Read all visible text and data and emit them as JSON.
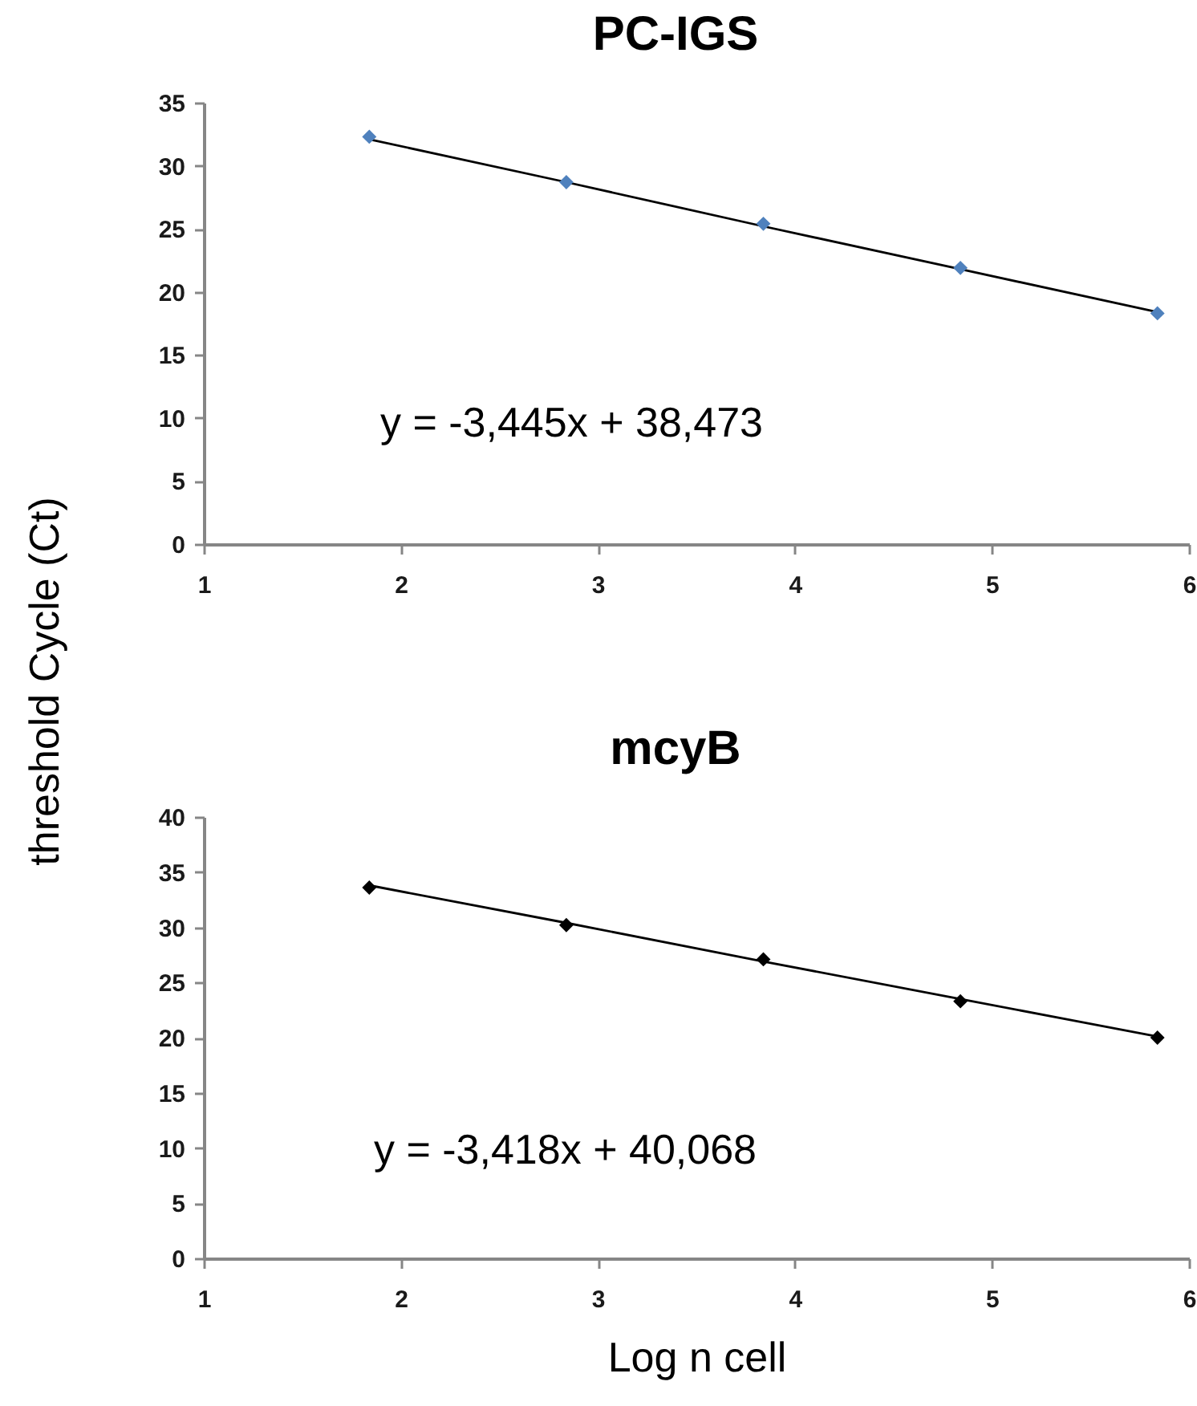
{
  "chart_data": [
    {
      "type": "scatter",
      "title": "PC-IGS",
      "ylabel": "threshold Cycle (Ct)",
      "x": [
        1.84,
        2.84,
        3.84,
        4.84,
        5.84
      ],
      "series": [
        {
          "color": "#4f81bd",
          "marker": "diamond",
          "values": [
            32.3,
            28.7,
            25.4,
            21.9,
            18.3
          ]
        },
        {
          "type": "line",
          "color": "#000000",
          "marker": "none",
          "line_style": "solid",
          "values": [
            32.1,
            28.7,
            25.2,
            21.8,
            18.4
          ]
        }
      ],
      "xlim": [
        1,
        6
      ],
      "xticks": [
        1,
        2,
        3,
        4,
        5,
        6
      ],
      "ylim": [
        0,
        35
      ],
      "yticks": [
        0,
        5,
        10,
        15,
        20,
        25,
        30,
        35
      ],
      "annotations": [
        "y = -3,445x + 38,473"
      ]
    },
    {
      "type": "scatter",
      "title": "mcyB",
      "xlabel": "Log n cell",
      "x": [
        1.84,
        2.84,
        3.84,
        4.84,
        5.84
      ],
      "series": [
        {
          "color": "#000000",
          "marker": "diamond",
          "values": [
            33.6,
            30.2,
            27.1,
            23.3,
            20.0
          ]
        },
        {
          "type": "line",
          "color": "#000000",
          "marker": "none",
          "line_style": "solid",
          "values": [
            33.8,
            30.4,
            26.9,
            23.5,
            20.1
          ]
        }
      ],
      "xlim": [
        1,
        6
      ],
      "xticks": [
        1,
        2,
        3,
        4,
        5,
        6
      ],
      "ylim": [
        0,
        40
      ],
      "yticks": [
        0,
        5,
        10,
        15,
        20,
        25,
        30,
        35,
        40
      ],
      "annotations": [
        "y = -3,418x + 40,068"
      ]
    }
  ]
}
